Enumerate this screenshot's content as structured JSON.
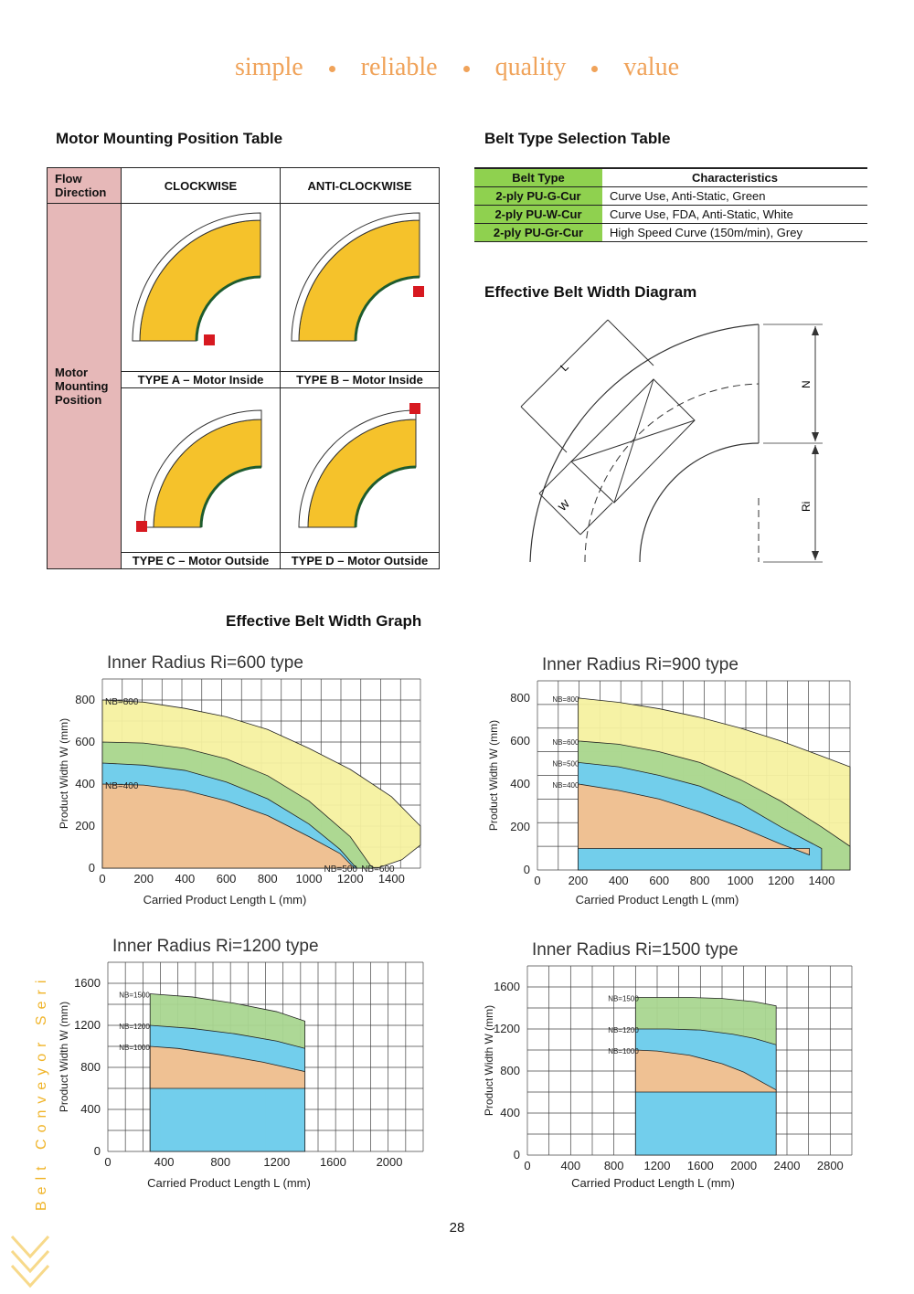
{
  "tagline": [
    "simple",
    "reliable",
    "quality",
    "value"
  ],
  "motor_table": {
    "title": "Motor Mounting Position Table",
    "flow_label": "Flow Direction",
    "col_cw": "CLOCKWISE",
    "col_acw": "ANTI-CLOCKWISE",
    "row_label": "Motor Mounting Position",
    "type_a": "TYPE A – Motor Inside",
    "type_b": "TYPE B – Motor Inside",
    "type_c": "TYPE C – Motor Outside",
    "type_d": "TYPE D – Motor Outside"
  },
  "belt_table": {
    "title": "Belt Type Selection Table",
    "headers": [
      "Belt Type",
      "Characteristics"
    ],
    "rows": [
      [
        "2-ply PU-G-Cur",
        "Curve Use, Anti-Static, Green"
      ],
      [
        "2-ply PU-W-Cur",
        "Curve Use, FDA, Anti-Static, White"
      ],
      [
        "2-ply PU-Gr-Cur",
        "High Speed Curve (150m/min), Grey"
      ]
    ]
  },
  "diagram": {
    "title": "Effective Belt Width Diagram",
    "L": "L",
    "W": "W",
    "N": "N",
    "Ri": "Ri"
  },
  "graph_title": "Effective Belt Width Graph",
  "colors": {
    "orange_fill": "#f6c08e",
    "blue_fill": "#6fcdf0",
    "green_fill": "#a9d690",
    "yellow_fill": "#f6f1a0",
    "belt_yellow": "#f5c22b",
    "tagline": "#f0a35a",
    "pink": "#e6b8b8",
    "belt_header": "#8fd14f"
  },
  "charts": [
    {
      "title": "Inner Radius Ri=600 type",
      "xlabel": "Carried Product Length L (mm)",
      "ylabel": "Product Width W (mm)",
      "xticks": [
        0,
        200,
        400,
        600,
        800,
        1000,
        1200,
        1400
      ],
      "yticks": [
        0,
        200,
        400,
        600,
        800
      ],
      "bands": [
        {
          "label": "NB=400"
        },
        {
          "label": "NB=500"
        },
        {
          "label": "NB=600"
        },
        {
          "label": "NB=800"
        }
      ]
    },
    {
      "title": "Inner Radius Ri=900 type",
      "xlabel": "Carried Product Length L (mm)",
      "ylabel": "Product Width W (mm)",
      "xticks": [
        0,
        200,
        400,
        600,
        800,
        1000,
        1200,
        1400
      ],
      "yticks": [
        0,
        200,
        400,
        600,
        800
      ],
      "bands": [
        {
          "label": "NB=400"
        },
        {
          "label": "NB=500"
        },
        {
          "label": "NB=600"
        },
        {
          "label": "NB=800"
        }
      ]
    },
    {
      "title": "Inner Radius Ri=1200 type",
      "xlabel": "Carried Product Length L (mm)",
      "ylabel": "Product Width W (mm)",
      "xticks": [
        0,
        400,
        800,
        1200,
        1600,
        2000
      ],
      "yticks": [
        0,
        400,
        800,
        1200,
        1600
      ],
      "bands": [
        {
          "label": "NB=1000"
        },
        {
          "label": "NB=1200"
        },
        {
          "label": "NB=1500"
        }
      ]
    },
    {
      "title": "Inner Radius Ri=1500 type",
      "xlabel": "Carried Product Length L (mm)",
      "ylabel": "Product Width W (mm)",
      "xticks": [
        0,
        400,
        800,
        1200,
        1600,
        2000,
        2400,
        2800
      ],
      "yticks": [
        0,
        400,
        800,
        1200,
        1600
      ],
      "bands": [
        {
          "label": "NB=1000"
        },
        {
          "label": "NB=1200"
        },
        {
          "label": "NB=1500"
        }
      ]
    }
  ],
  "side_label": "Belt Conveyor Series",
  "page_number": "28"
}
